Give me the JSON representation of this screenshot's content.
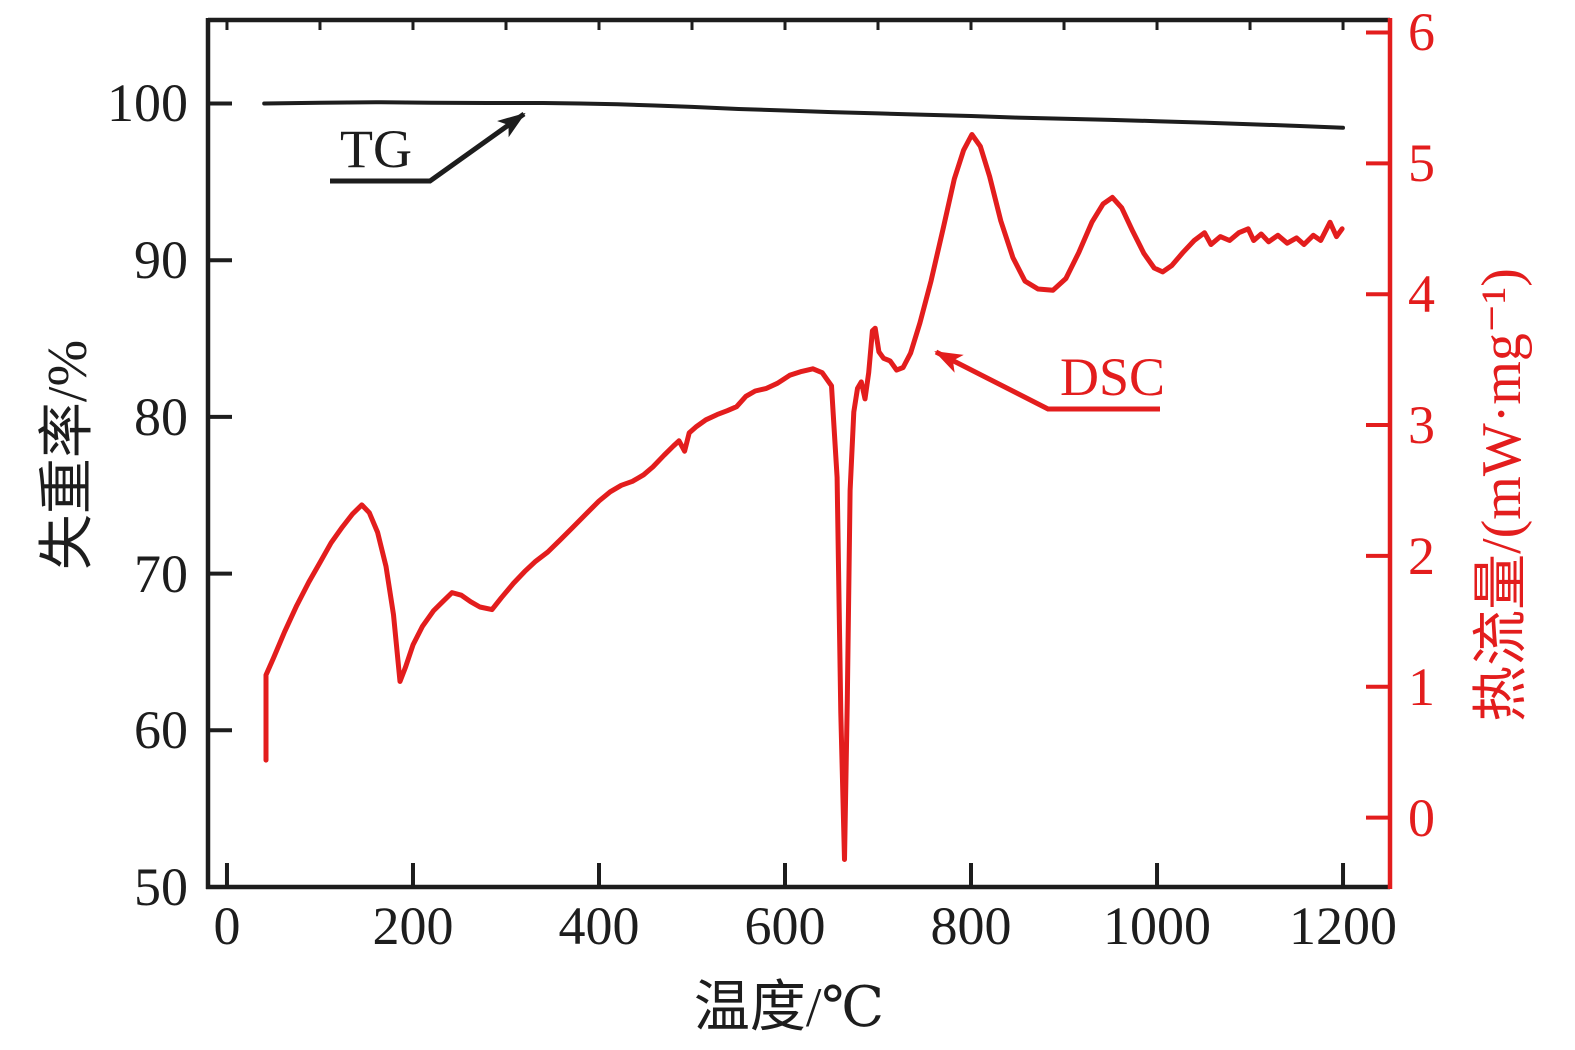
{
  "colors": {
    "tg_black": "#1d1d1d",
    "dsc_red": "#e31d1d",
    "background": "#ffffff"
  },
  "chart_data": {
    "type": "line",
    "title": "",
    "x_axis": {
      "label": "温度/℃",
      "ticks": [
        0,
        200,
        400,
        600,
        800,
        1000,
        1200
      ],
      "minor_tick_step_top": 100,
      "range": [
        -20.4,
        1250.5
      ]
    },
    "y_axis_left": {
      "label": "失重率/%",
      "ticks": [
        100,
        90,
        80,
        70,
        60,
        50
      ],
      "range": [
        50,
        105.2
      ]
    },
    "y_axis_right": {
      "label": "热流量/(mW·mg⁻¹)",
      "ticks": [
        6,
        5,
        4,
        3,
        2,
        1,
        0
      ],
      "range": [
        -0.53,
        6.08
      ]
    },
    "legend_position": "none",
    "grid": false,
    "annotations": [
      {
        "text": "TG",
        "color": "#1d1d1d"
      },
      {
        "text": "DSC",
        "color": "#e31d1d"
      }
    ],
    "series": [
      {
        "name": "TG",
        "axis": "left",
        "color": "#1d1d1d",
        "units": "%",
        "points": [
          [
            40,
            100.0
          ],
          [
            100,
            100.05
          ],
          [
            160,
            100.08
          ],
          [
            220,
            100.05
          ],
          [
            280,
            100.03
          ],
          [
            340,
            100.03
          ],
          [
            380,
            100.0
          ],
          [
            420,
            99.95
          ],
          [
            460,
            99.87
          ],
          [
            500,
            99.78
          ],
          [
            550,
            99.65
          ],
          [
            600,
            99.55
          ],
          [
            650,
            99.45
          ],
          [
            700,
            99.37
          ],
          [
            750,
            99.28
          ],
          [
            800,
            99.2
          ],
          [
            850,
            99.1
          ],
          [
            900,
            99.02
          ],
          [
            950,
            98.95
          ],
          [
            1000,
            98.87
          ],
          [
            1050,
            98.78
          ],
          [
            1100,
            98.68
          ],
          [
            1150,
            98.57
          ],
          [
            1200,
            98.45
          ]
        ]
      },
      {
        "name": "DSC",
        "axis": "right",
        "color": "#e31d1d",
        "units": "mW·mg⁻¹",
        "points": [
          [
            42,
            0.44
          ],
          [
            42,
            1.09
          ],
          [
            50,
            1.22
          ],
          [
            62,
            1.42
          ],
          [
            75,
            1.62
          ],
          [
            88,
            1.8
          ],
          [
            100,
            1.95
          ],
          [
            112,
            2.1
          ],
          [
            124,
            2.22
          ],
          [
            135,
            2.32
          ],
          [
            145,
            2.39
          ],
          [
            153,
            2.33
          ],
          [
            162,
            2.18
          ],
          [
            171,
            1.92
          ],
          [
            179,
            1.55
          ],
          [
            186,
            1.04
          ],
          [
            192,
            1.15
          ],
          [
            200,
            1.32
          ],
          [
            210,
            1.46
          ],
          [
            222,
            1.58
          ],
          [
            232,
            1.65
          ],
          [
            242,
            1.72
          ],
          [
            252,
            1.7
          ],
          [
            262,
            1.65
          ],
          [
            272,
            1.61
          ],
          [
            285,
            1.59
          ],
          [
            295,
            1.68
          ],
          [
            308,
            1.79
          ],
          [
            320,
            1.88
          ],
          [
            332,
            1.96
          ],
          [
            345,
            2.03
          ],
          [
            358,
            2.12
          ],
          [
            372,
            2.22
          ],
          [
            386,
            2.32
          ],
          [
            400,
            2.42
          ],
          [
            412,
            2.49
          ],
          [
            424,
            2.54
          ],
          [
            436,
            2.57
          ],
          [
            448,
            2.62
          ],
          [
            458,
            2.68
          ],
          [
            470,
            2.77
          ],
          [
            480,
            2.84
          ],
          [
            486,
            2.88
          ],
          [
            492,
            2.8
          ],
          [
            497,
            2.94
          ],
          [
            505,
            2.99
          ],
          [
            515,
            3.04
          ],
          [
            527,
            3.08
          ],
          [
            538,
            3.11
          ],
          [
            548,
            3.14
          ],
          [
            558,
            3.22
          ],
          [
            568,
            3.26
          ],
          [
            580,
            3.28
          ],
          [
            592,
            3.32
          ],
          [
            605,
            3.38
          ],
          [
            618,
            3.41
          ],
          [
            630,
            3.43
          ],
          [
            640,
            3.4
          ],
          [
            650,
            3.3
          ],
          [
            656,
            2.6
          ],
          [
            660,
            0.8
          ],
          [
            664,
            -0.32
          ],
          [
            667,
            0.9
          ],
          [
            670,
            2.5
          ],
          [
            674,
            3.1
          ],
          [
            678,
            3.28
          ],
          [
            682,
            3.33
          ],
          [
            686,
            3.2
          ],
          [
            690,
            3.4
          ],
          [
            694,
            3.72
          ],
          [
            697,
            3.74
          ],
          [
            701,
            3.56
          ],
          [
            706,
            3.51
          ],
          [
            713,
            3.49
          ],
          [
            720,
            3.42
          ],
          [
            727,
            3.44
          ],
          [
            735,
            3.55
          ],
          [
            745,
            3.78
          ],
          [
            757,
            4.1
          ],
          [
            770,
            4.5
          ],
          [
            782,
            4.88
          ],
          [
            792,
            5.1
          ],
          [
            801,
            5.22
          ],
          [
            810,
            5.13
          ],
          [
            820,
            4.9
          ],
          [
            832,
            4.56
          ],
          [
            845,
            4.28
          ],
          [
            858,
            4.1
          ],
          [
            872,
            4.04
          ],
          [
            888,
            4.03
          ],
          [
            902,
            4.12
          ],
          [
            916,
            4.32
          ],
          [
            930,
            4.55
          ],
          [
            942,
            4.69
          ],
          [
            952,
            4.74
          ],
          [
            962,
            4.66
          ],
          [
            974,
            4.48
          ],
          [
            986,
            4.31
          ],
          [
            997,
            4.2
          ],
          [
            1006,
            4.17
          ],
          [
            1016,
            4.22
          ],
          [
            1028,
            4.32
          ],
          [
            1040,
            4.41
          ],
          [
            1051,
            4.47
          ],
          [
            1058,
            4.38
          ],
          [
            1068,
            4.44
          ],
          [
            1078,
            4.41
          ],
          [
            1088,
            4.47
          ],
          [
            1098,
            4.5
          ],
          [
            1104,
            4.41
          ],
          [
            1112,
            4.46
          ],
          [
            1120,
            4.4
          ],
          [
            1130,
            4.45
          ],
          [
            1140,
            4.39
          ],
          [
            1150,
            4.43
          ],
          [
            1158,
            4.38
          ],
          [
            1168,
            4.45
          ],
          [
            1176,
            4.41
          ],
          [
            1186,
            4.55
          ],
          [
            1193,
            4.44
          ],
          [
            1199,
            4.5
          ]
        ]
      }
    ]
  }
}
